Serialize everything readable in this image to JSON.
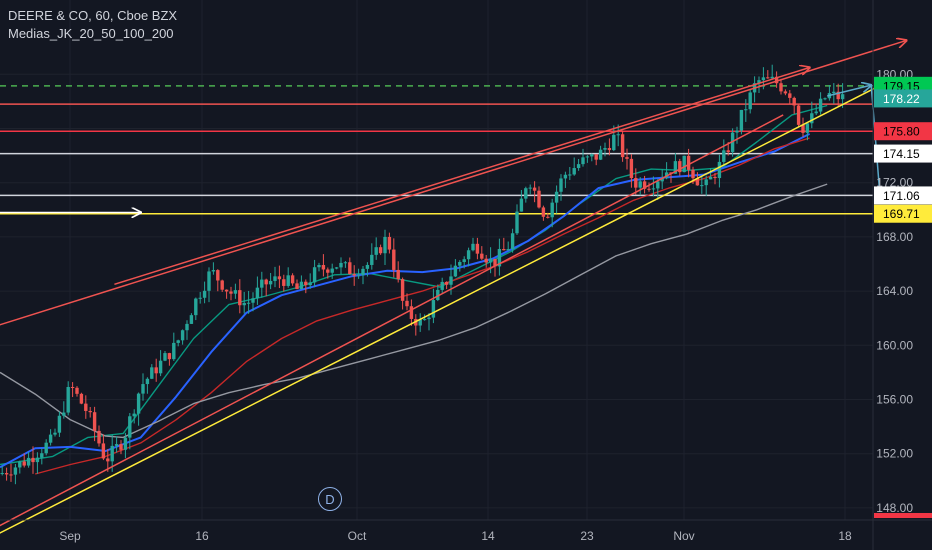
{
  "legend": {
    "symbol_line": "DEERE & CO, 60, Cboe BZX",
    "indicator_line": "Medias_JK_20_50_100_200"
  },
  "event_badge": "D",
  "colors": {
    "background": "#131722",
    "grid": "#1e222d",
    "axis_text": "#b2b5be",
    "candle_up": "#26a69a",
    "candle_down": "#ef5350",
    "ma20": "#089981",
    "ma50": "#2962ff",
    "ma100": "#c62828",
    "ma200": "#9598a1",
    "channel": "#ef5350",
    "support": "#ffeb3b",
    "forecast": "#5aa9c9"
  },
  "chart_data": {
    "type": "candlestick",
    "title": "DEERE & CO, 60, Cboe BZX",
    "indicator": "Medias_JK_20_50_100_200",
    "ylim": [
      146.0,
      182.0
    ],
    "y_ticks": [
      148.0,
      152.0,
      156.0,
      160.0,
      164.0,
      168.0,
      172.0,
      176.0,
      180.0
    ],
    "y_tick_labels": [
      "148.00",
      "152.00",
      "156.00",
      "160.00",
      "164.00",
      "168.00",
      "172.00",
      "176.00",
      "180.00"
    ],
    "x_tick_labels": [
      "Sep",
      "16",
      "Oct",
      "14",
      "23",
      "Nov",
      "18"
    ],
    "price_path": [
      [
        0,
        150.5
      ],
      [
        3,
        151.5
      ],
      [
        6,
        153.0
      ],
      [
        8,
        157.0
      ],
      [
        10,
        155.0
      ],
      [
        12,
        151.5
      ],
      [
        14,
        153.0
      ],
      [
        16,
        157.0
      ],
      [
        18,
        158.5
      ],
      [
        20,
        160.0
      ],
      [
        22,
        163.0
      ],
      [
        24,
        165.5
      ],
      [
        26,
        164.0
      ],
      [
        28,
        163.0
      ],
      [
        30,
        164.5
      ],
      [
        32,
        165.0
      ],
      [
        34,
        164.0
      ],
      [
        36,
        165.5
      ],
      [
        38,
        166.0
      ],
      [
        40,
        165.5
      ],
      [
        42,
        166.0
      ],
      [
        44,
        168.0
      ],
      [
        46,
        162.5
      ],
      [
        48,
        161.5
      ],
      [
        50,
        164.0
      ],
      [
        52,
        166.0
      ],
      [
        54,
        167.5
      ],
      [
        56,
        166.0
      ],
      [
        58,
        167.5
      ],
      [
        60,
        172.5
      ],
      [
        62,
        169.5
      ],
      [
        64,
        172.5
      ],
      [
        66,
        173.5
      ],
      [
        68,
        174.0
      ],
      [
        70,
        175.5
      ],
      [
        72,
        172.0
      ],
      [
        74,
        172.0
      ],
      [
        76,
        173.0
      ],
      [
        78,
        173.5
      ],
      [
        80,
        171.5
      ],
      [
        82,
        173.5
      ],
      [
        84,
        176.5
      ],
      [
        86,
        179.5
      ],
      [
        88,
        179.5
      ],
      [
        90,
        178.5
      ],
      [
        91,
        176.0
      ],
      [
        92,
        176.5
      ],
      [
        94,
        178.5
      ],
      [
        96,
        178.22
      ]
    ],
    "moving_averages": [
      {
        "name": "MA20",
        "color": "#089981",
        "points": [
          [
            0,
            151.2
          ],
          [
            6,
            151.8
          ],
          [
            10,
            153.2
          ],
          [
            14,
            153.5
          ],
          [
            18,
            157.0
          ],
          [
            22,
            160.5
          ],
          [
            26,
            163.0
          ],
          [
            30,
            163.6
          ],
          [
            34,
            164.3
          ],
          [
            38,
            165.2
          ],
          [
            42,
            165.3
          ],
          [
            46,
            164.8
          ],
          [
            50,
            164.3
          ],
          [
            54,
            165.6
          ],
          [
            58,
            166.9
          ],
          [
            62,
            168.5
          ],
          [
            66,
            170.5
          ],
          [
            70,
            172.3
          ],
          [
            74,
            173.0
          ],
          [
            78,
            172.9
          ],
          [
            82,
            173.1
          ],
          [
            86,
            175.0
          ],
          [
            90,
            177.0
          ],
          [
            94,
            177.7
          ]
        ]
      },
      {
        "name": "MA50",
        "color": "#2962ff",
        "points": [
          [
            0,
            151.0
          ],
          [
            4,
            152.4
          ],
          [
            8,
            152.5
          ],
          [
            12,
            152.2
          ],
          [
            16,
            153.2
          ],
          [
            20,
            156.2
          ],
          [
            24,
            159.5
          ],
          [
            28,
            162.4
          ],
          [
            32,
            163.7
          ],
          [
            36,
            164.4
          ],
          [
            40,
            165.1
          ],
          [
            44,
            165.5
          ],
          [
            48,
            165.4
          ],
          [
            52,
            165.7
          ],
          [
            56,
            166.4
          ],
          [
            60,
            167.7
          ],
          [
            64,
            169.5
          ],
          [
            68,
            171.6
          ],
          [
            72,
            172.2
          ],
          [
            76,
            172.4
          ],
          [
            80,
            172.6
          ],
          [
            84,
            173.5
          ],
          [
            88,
            174.3
          ],
          [
            92,
            175.6
          ]
        ]
      },
      {
        "name": "MA100",
        "color": "#c62828",
        "points": [
          [
            4,
            150.5
          ],
          [
            8,
            151.2
          ],
          [
            12,
            151.8
          ],
          [
            16,
            152.8
          ],
          [
            20,
            154.5
          ],
          [
            24,
            156.5
          ],
          [
            28,
            158.8
          ],
          [
            32,
            160.5
          ],
          [
            36,
            161.8
          ],
          [
            40,
            162.6
          ],
          [
            44,
            163.3
          ],
          [
            48,
            164.0
          ],
          [
            52,
            164.9
          ],
          [
            56,
            165.8
          ],
          [
            60,
            166.9
          ],
          [
            64,
            168.2
          ],
          [
            68,
            169.4
          ],
          [
            72,
            170.7
          ],
          [
            76,
            171.6
          ],
          [
            80,
            172.3
          ],
          [
            84,
            173.3
          ],
          [
            88,
            174.5
          ],
          [
            92,
            175.3
          ]
        ]
      },
      {
        "name": "MA200",
        "color": "#9598a1",
        "points": [
          [
            0,
            158.0
          ],
          [
            4,
            156.4
          ],
          [
            8,
            154.5
          ],
          [
            12,
            153.3
          ],
          [
            14,
            153.2
          ],
          [
            18,
            154.4
          ],
          [
            22,
            155.7
          ],
          [
            26,
            156.5
          ],
          [
            30,
            157.1
          ],
          [
            34,
            157.6
          ],
          [
            38,
            158.3
          ],
          [
            42,
            159.0
          ],
          [
            46,
            159.7
          ],
          [
            50,
            160.4
          ],
          [
            54,
            161.3
          ],
          [
            58,
            162.5
          ],
          [
            62,
            163.8
          ],
          [
            66,
            165.2
          ],
          [
            70,
            166.6
          ],
          [
            74,
            167.5
          ],
          [
            78,
            168.2
          ],
          [
            82,
            169.2
          ],
          [
            86,
            170.0
          ],
          [
            90,
            171.0
          ],
          [
            94,
            171.9
          ]
        ]
      }
    ],
    "horizontal_levels": [
      {
        "label": "179.15",
        "value": 179.15,
        "color": "#4caf50",
        "style": "dashed",
        "badge_bg": "#00c853",
        "badge_fg": "#000000"
      },
      {
        "label": "178.22",
        "value": 178.22,
        "color": "#26a69a",
        "style": "none",
        "badge_bg": "#26a69a",
        "badge_fg": "#ffffff"
      },
      {
        "label": "177.80",
        "value": 177.8,
        "color": "#ef5350",
        "style": "solid",
        "badge_bg": "",
        "badge_fg": ""
      },
      {
        "label": "175.80",
        "value": 175.8,
        "color": "#f23645",
        "style": "solid",
        "badge_bg": "#f23645",
        "badge_fg": "#000000"
      },
      {
        "label": "174.15",
        "value": 174.15,
        "color": "#d1d4dc",
        "style": "solid",
        "badge_bg": "#ffffff",
        "badge_fg": "#000000"
      },
      {
        "label": "171.06",
        "value": 171.06,
        "color": "#d1d4dc",
        "style": "solid",
        "badge_bg": "#ffffff",
        "badge_fg": "#000000"
      },
      {
        "label": "169.71",
        "value": 169.71,
        "color": "#ffeb3b",
        "style": "solid",
        "badge_bg": "#ffeb3b",
        "badge_fg": "#000000"
      }
    ],
    "trend_lines": [
      {
        "name": "channel-upper-outer",
        "color": "#ef5350",
        "from": [
          -5,
          160.5
        ],
        "to": [
          103,
          182.5
        ],
        "arrow": true
      },
      {
        "name": "channel-upper-inner",
        "color": "#ef5350",
        "from": [
          13,
          164.5
        ],
        "to": [
          92,
          180.5
        ],
        "arrow": true
      },
      {
        "name": "channel-lower",
        "color": "#ef5350",
        "from": [
          -5,
          145.0
        ],
        "to": [
          89,
          177.0
        ],
        "arrow": false
      },
      {
        "name": "support-line",
        "color": "#ffeb3b",
        "from": [
          -5,
          144.5
        ],
        "to": [
          101,
          179.5
        ],
        "arrow": true
      },
      {
        "name": "forecast-up",
        "color": "#5aa9c9",
        "from": [
          94,
          178.4
        ],
        "to": [
          99,
          179.2
        ],
        "arrow": true
      },
      {
        "name": "forecast-down",
        "color": "#5aa9c9",
        "from": [
          99,
          179.2
        ],
        "to": [
          100,
          171.0
        ],
        "arrow": true
      },
      {
        "name": "marker-arrow",
        "color": "#ffffff",
        "from": [
          -5,
          169.8
        ],
        "to": [
          16,
          169.8
        ],
        "arrow": true
      }
    ]
  }
}
